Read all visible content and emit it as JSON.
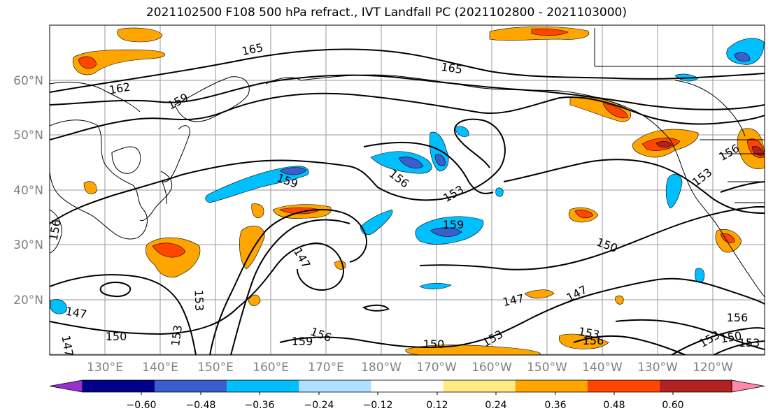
{
  "title": "2021102500 F108 500 hPa refract., IVT Landfall PC (2021102800 - 2021103000)",
  "lat_labels": [
    "60°N",
    "50°N",
    "40°N",
    "30°N",
    "20°N"
  ],
  "lon_labels": [
    "130°E",
    "140°E",
    "150°E",
    "160°E",
    "170°E",
    "180°W",
    "170°W",
    "160°W",
    "150°W",
    "140°W",
    "130°W",
    "120°W"
  ],
  "contour_labels": [
    "165",
    "165",
    "162",
    "159",
    "159",
    "156",
    "153",
    "159",
    "156",
    "153",
    "150",
    "147",
    "147",
    "147",
    "150",
    "153",
    "153",
    "156",
    "159",
    "150",
    "153",
    "153",
    "156",
    "153",
    "150",
    "153",
    "156",
    "147",
    "156",
    "147"
  ],
  "colorbar": {
    "colors": [
      "#9932CC",
      "#00008B",
      "#3A5ECC",
      "#00BFFF",
      "#B0E0FF",
      "#FFFFFF",
      "#FFEB82",
      "#FFA500",
      "#FF4500",
      "#B22222",
      "#FF88AA"
    ],
    "tick_labels": [
      "−0.60",
      "−0.48",
      "−0.36",
      "−0.24",
      "−0.12",
      "0.12",
      "0.24",
      "0.36",
      "0.48",
      "0.60"
    ]
  }
}
